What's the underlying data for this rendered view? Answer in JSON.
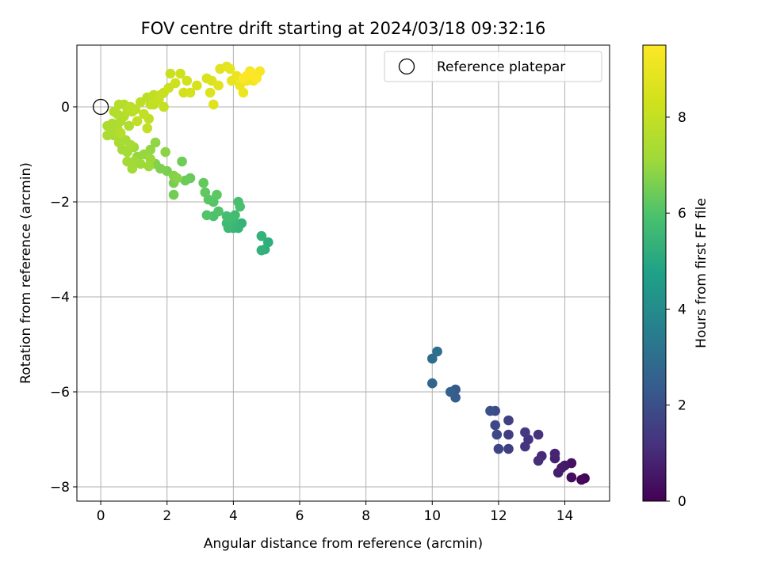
{
  "chart_data": {
    "type": "scatter",
    "title": "FOV centre drift starting at 2024/03/18 09:32:16",
    "xlabel": "Angular distance from reference (arcmin)",
    "ylabel": "Rotation from reference (arcmin)",
    "xlim": [
      -0.72,
      15.35
    ],
    "ylim": [
      -8.3,
      1.3
    ],
    "xticks": [
      0,
      2,
      4,
      6,
      8,
      10,
      12,
      14
    ],
    "yticks": [
      -8,
      -6,
      -4,
      -2,
      0
    ],
    "grid": true,
    "legend": {
      "location": "top-right",
      "entries": [
        "Reference platepar"
      ]
    },
    "reference_point": {
      "x": 0,
      "y": 0
    },
    "colorbar": {
      "label": "Hours from first FF file",
      "range": [
        0,
        9.5
      ],
      "ticks": [
        0,
        2,
        4,
        6,
        8
      ],
      "colormap": "viridis"
    },
    "series": [
      {
        "points": [
          [
            14.6,
            -7.82,
            0.1
          ],
          [
            14.5,
            -7.85,
            0.2
          ],
          [
            14.2,
            -7.8,
            0.3
          ],
          [
            14.2,
            -7.5,
            0.4
          ],
          [
            14.0,
            -7.55,
            0.5
          ],
          [
            13.9,
            -7.6,
            0.6
          ],
          [
            13.8,
            -7.7,
            0.7
          ],
          [
            13.7,
            -7.4,
            0.8
          ],
          [
            13.7,
            -7.3,
            0.9
          ],
          [
            13.3,
            -7.35,
            1.0
          ],
          [
            13.2,
            -7.45,
            1.1
          ],
          [
            13.2,
            -6.9,
            1.2
          ],
          [
            12.9,
            -7.0,
            1.25
          ],
          [
            12.8,
            -7.15,
            1.3
          ],
          [
            12.8,
            -6.85,
            1.4
          ],
          [
            12.3,
            -6.9,
            1.5
          ],
          [
            12.3,
            -7.2,
            1.55
          ],
          [
            12.3,
            -6.6,
            1.6
          ],
          [
            12.0,
            -7.2,
            1.7
          ],
          [
            11.9,
            -6.7,
            1.8
          ],
          [
            11.95,
            -6.9,
            1.85
          ],
          [
            11.9,
            -6.4,
            1.9
          ],
          [
            11.75,
            -6.4,
            2.0
          ],
          [
            10.7,
            -5.95,
            2.3
          ],
          [
            10.7,
            -6.12,
            2.4
          ],
          [
            10.55,
            -6.0,
            2.5
          ],
          [
            10.0,
            -5.82,
            2.7
          ],
          [
            10.0,
            -5.3,
            2.9
          ],
          [
            10.15,
            -5.15,
            3.0
          ],
          [
            5.05,
            -2.85,
            5.2
          ],
          [
            4.95,
            -3.0,
            5.25
          ],
          [
            4.85,
            -3.02,
            5.3
          ],
          [
            4.85,
            -2.72,
            5.35
          ],
          [
            4.25,
            -2.45,
            5.4
          ],
          [
            4.15,
            -2.55,
            5.45
          ],
          [
            4.0,
            -2.55,
            5.5
          ],
          [
            4.0,
            -2.4,
            5.55
          ],
          [
            3.85,
            -2.55,
            5.6
          ],
          [
            3.8,
            -2.45,
            5.65
          ],
          [
            3.95,
            -2.35,
            5.7
          ],
          [
            4.05,
            -2.28,
            5.75
          ],
          [
            3.8,
            -2.3,
            5.8
          ],
          [
            4.15,
            -2.0,
            5.85
          ],
          [
            4.2,
            -2.1,
            5.9
          ],
          [
            3.4,
            -2.3,
            5.95
          ],
          [
            3.55,
            -2.2,
            6.0
          ],
          [
            3.2,
            -2.28,
            6.05
          ],
          [
            3.4,
            -2.0,
            6.1
          ],
          [
            3.25,
            -1.95,
            6.15
          ],
          [
            3.5,
            -1.85,
            6.2
          ],
          [
            3.15,
            -1.8,
            6.25
          ],
          [
            3.1,
            -1.6,
            6.3
          ],
          [
            2.7,
            -1.5,
            6.35
          ],
          [
            2.55,
            -1.55,
            6.4
          ],
          [
            2.45,
            -1.15,
            6.45
          ],
          [
            2.2,
            -1.85,
            6.5
          ],
          [
            2.2,
            -1.6,
            6.55
          ],
          [
            2.0,
            -1.35,
            6.6
          ],
          [
            1.8,
            -1.3,
            6.65
          ],
          [
            1.65,
            -1.2,
            6.7
          ],
          [
            2.2,
            -1.45,
            6.75
          ],
          [
            2.3,
            -1.5,
            6.8
          ],
          [
            1.95,
            -0.95,
            6.85
          ],
          [
            1.65,
            -0.75,
            6.9
          ],
          [
            1.5,
            -0.9,
            6.95
          ],
          [
            1.3,
            -1.0,
            7.0
          ],
          [
            1.1,
            -1.05,
            7.0
          ],
          [
            1.5,
            -1.1,
            7.05
          ],
          [
            1.45,
            -1.25,
            7.1
          ],
          [
            1.2,
            -1.2,
            7.1
          ],
          [
            1.0,
            -1.15,
            7.15
          ],
          [
            1.0,
            -0.85,
            7.15
          ],
          [
            0.95,
            -1.3,
            7.2
          ],
          [
            0.8,
            -1.15,
            7.2
          ],
          [
            0.8,
            -0.95,
            7.25
          ],
          [
            0.65,
            -0.9,
            7.25
          ],
          [
            0.9,
            -0.8,
            7.3
          ],
          [
            0.75,
            -0.7,
            7.3
          ],
          [
            0.55,
            -0.75,
            7.35
          ],
          [
            0.4,
            -0.6,
            7.35
          ],
          [
            0.35,
            -0.55,
            7.4
          ],
          [
            0.2,
            -0.6,
            7.4
          ],
          [
            0.2,
            -0.4,
            7.45
          ],
          [
            0.35,
            -0.35,
            7.45
          ],
          [
            0.5,
            -0.45,
            7.5
          ],
          [
            0.6,
            -0.3,
            7.5
          ],
          [
            0.85,
            -0.4,
            7.55
          ],
          [
            0.7,
            -0.2,
            7.55
          ],
          [
            0.5,
            -0.15,
            7.6
          ],
          [
            0.4,
            -0.1,
            7.6
          ],
          [
            0.55,
            0.05,
            7.65
          ],
          [
            0.7,
            0.05,
            7.7
          ],
          [
            0.6,
            -0.55,
            7.7
          ],
          [
            0.95,
            -0.1,
            7.75
          ],
          [
            0.8,
            -0.1,
            7.75
          ],
          [
            0.9,
            0.0,
            7.8
          ],
          [
            1.05,
            -0.05,
            7.8
          ],
          [
            1.2,
            0.1,
            7.85
          ],
          [
            1.4,
            0.2,
            7.85
          ],
          [
            1.6,
            0.25,
            7.9
          ],
          [
            1.5,
            0.05,
            7.9
          ],
          [
            1.45,
            -0.25,
            7.9
          ],
          [
            1.3,
            -0.15,
            7.95
          ],
          [
            1.1,
            -0.3,
            7.95
          ],
          [
            1.4,
            -0.45,
            8.0
          ],
          [
            1.6,
            0.05,
            8.0
          ],
          [
            1.75,
            0.15,
            8.05
          ],
          [
            1.9,
            0.0,
            8.05
          ],
          [
            1.9,
            0.3,
            8.1
          ],
          [
            1.8,
            0.25,
            8.1
          ],
          [
            2.1,
            0.7,
            8.15
          ],
          [
            2.05,
            0.4,
            8.2
          ],
          [
            2.25,
            0.5,
            8.25
          ],
          [
            2.4,
            0.7,
            8.3
          ],
          [
            2.6,
            0.55,
            8.35
          ],
          [
            2.5,
            0.3,
            8.4
          ],
          [
            2.7,
            0.3,
            8.45
          ],
          [
            2.9,
            0.45,
            8.5
          ],
          [
            3.2,
            0.6,
            8.55
          ],
          [
            3.35,
            0.55,
            8.6
          ],
          [
            3.3,
            0.3,
            8.65
          ],
          [
            3.4,
            0.05,
            8.7
          ],
          [
            3.55,
            0.45,
            8.75
          ],
          [
            3.6,
            0.8,
            8.8
          ],
          [
            3.8,
            0.85,
            8.85
          ],
          [
            3.9,
            0.8,
            8.9
          ],
          [
            3.95,
            0.55,
            8.95
          ],
          [
            4.1,
            0.65,
            9.0
          ],
          [
            4.3,
            0.3,
            9.05
          ],
          [
            4.2,
            0.45,
            9.1
          ],
          [
            4.4,
            0.55,
            9.15
          ],
          [
            4.6,
            0.55,
            9.2
          ],
          [
            4.5,
            0.75,
            9.25
          ],
          [
            4.7,
            0.65,
            9.3
          ],
          [
            4.8,
            0.75,
            9.35
          ],
          [
            4.4,
            0.65,
            9.4
          ],
          [
            4.3,
            0.6,
            9.45
          ],
          [
            4.5,
            0.7,
            9.5
          ],
          [
            4.7,
            0.6,
            9.5
          ]
        ]
      }
    ]
  }
}
